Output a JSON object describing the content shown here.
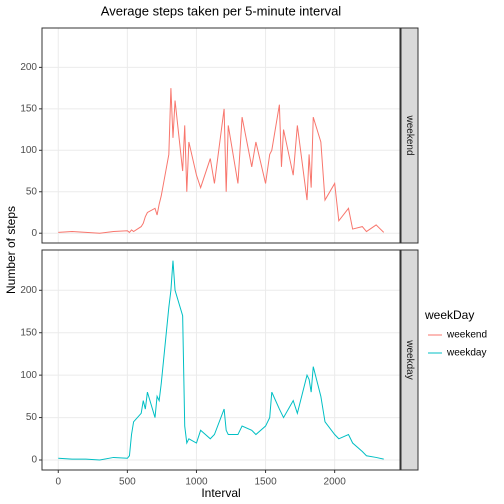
{
  "chart_data": {
    "type": "line",
    "title": "Average steps taken per 5-minute interval",
    "xlabel": "Interval",
    "ylabel": "Number of steps",
    "legend_title": "weekDay",
    "x": [
      0,
      100,
      200,
      300,
      400,
      500,
      515,
      530,
      545,
      600,
      615,
      630,
      645,
      700,
      715,
      730,
      745,
      800,
      815,
      830,
      845,
      900,
      915,
      930,
      945,
      1000,
      1030,
      1100,
      1130,
      1200,
      1215,
      1230,
      1300,
      1330,
      1400,
      1430,
      1500,
      1530,
      1545,
      1600,
      1615,
      1630,
      1700,
      1730,
      1800,
      1815,
      1830,
      1845,
      1900,
      1930,
      2000,
      2030,
      2100,
      2130,
      2200,
      2230,
      2300,
      2355
    ],
    "series": [
      {
        "name": "weekend",
        "color": "#F8766D",
        "values": [
          1,
          2,
          1,
          0,
          2,
          3,
          1,
          4,
          2,
          8,
          12,
          20,
          25,
          30,
          22,
          35,
          45,
          95,
          175,
          115,
          160,
          75,
          130,
          50,
          110,
          70,
          55,
          90,
          60,
          150,
          50,
          130,
          60,
          140,
          80,
          110,
          60,
          95,
          100,
          155,
          80,
          125,
          70,
          130,
          40,
          95,
          55,
          140,
          110,
          40,
          60,
          15,
          30,
          5,
          8,
          2,
          10,
          1
        ]
      },
      {
        "name": "weekday",
        "color": "#00BFC4",
        "values": [
          2,
          1,
          1,
          0,
          3,
          2,
          5,
          30,
          45,
          55,
          70,
          60,
          80,
          50,
          75,
          70,
          90,
          180,
          200,
          235,
          200,
          170,
          40,
          20,
          25,
          20,
          35,
          25,
          30,
          60,
          35,
          30,
          30,
          40,
          35,
          30,
          40,
          50,
          80,
          60,
          55,
          50,
          70,
          55,
          100,
          95,
          80,
          110,
          75,
          45,
          30,
          25,
          30,
          20,
          10,
          5,
          3,
          1
        ]
      }
    ],
    "xlim": [
      -117.75,
      2472.75
    ],
    "ylim": [
      -11.8,
      247.5
    ],
    "xticks": [
      0,
      500,
      1000,
      1500,
      2000
    ],
    "yticks": [
      0,
      50,
      100,
      150,
      200
    ],
    "grid": true
  }
}
